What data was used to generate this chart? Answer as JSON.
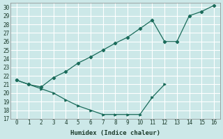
{
  "xlabel": "Humidex (Indice chaleur)",
  "ylabel": "",
  "background_color": "#cce8e8",
  "grid_color": "#b0d0d0",
  "line_color": "#1a6b5a",
  "xlim": [
    -0.5,
    16.5
  ],
  "ylim": [
    17,
    30.5
  ],
  "yticks": [
    17,
    18,
    19,
    20,
    21,
    22,
    23,
    24,
    25,
    26,
    27,
    28,
    29,
    30
  ],
  "xticks": [
    0,
    1,
    2,
    3,
    4,
    5,
    6,
    7,
    8,
    9,
    10,
    11,
    12,
    13,
    14,
    15,
    16
  ],
  "series1_x": [
    0,
    1,
    2,
    3,
    4,
    5,
    6,
    7,
    8,
    9,
    10,
    11,
    12,
    13,
    14,
    15,
    16
  ],
  "series1_y": [
    21.5,
    21.0,
    20.7,
    21.8,
    22.5,
    23.5,
    24.2,
    25.0,
    25.8,
    26.5,
    27.5,
    28.5,
    26.0,
    26.0,
    29.0,
    29.5,
    30.2
  ],
  "series2_x": [
    0,
    1,
    2,
    3,
    4,
    5,
    6,
    7,
    8,
    9,
    10,
    11,
    12
  ],
  "series2_y": [
    21.5,
    21.0,
    20.5,
    20.0,
    19.2,
    18.5,
    18.0,
    17.5,
    17.5,
    17.5,
    17.5,
    19.5,
    21.0
  ]
}
